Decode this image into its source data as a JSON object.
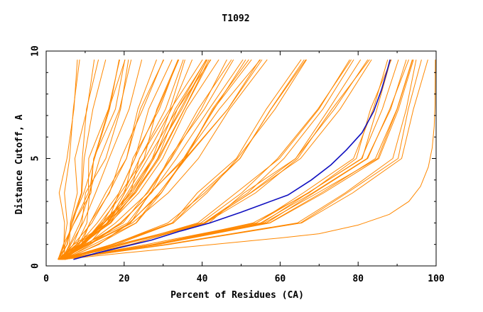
{
  "chart_data": {
    "type": "line",
    "title": "T1092",
    "xlabel": "Percent of Residues (CA)",
    "ylabel": "Distance Cutoff, A",
    "xlim": [
      0,
      100
    ],
    "ylim": [
      0,
      10
    ],
    "x_ticks": [
      "0",
      "20",
      "40",
      "60",
      "80",
      "100"
    ],
    "y_ticks": [
      "0",
      "5",
      "10"
    ],
    "grid": false,
    "legend": "none",
    "colors": {
      "highlight": "#1010c0",
      "others": "#ff8800",
      "axis": "#000000"
    },
    "highlight_series": {
      "points": [
        [
          7,
          0.3
        ],
        [
          13,
          0.6
        ],
        [
          20,
          0.9
        ],
        [
          27,
          1.2
        ],
        [
          34,
          1.6
        ],
        [
          42,
          2.0
        ],
        [
          50,
          2.5
        ],
        [
          56,
          2.9
        ],
        [
          62,
          3.3
        ],
        [
          68,
          4.0
        ],
        [
          73,
          4.7
        ],
        [
          77,
          5.4
        ],
        [
          81,
          6.2
        ],
        [
          84,
          7.2
        ],
        [
          86,
          8.2
        ],
        [
          87.3,
          9.0
        ],
        [
          88.2,
          9.6
        ]
      ]
    },
    "families": [
      {
        "x_at_10": 12,
        "x_at_5": 8,
        "x_at_2": 6,
        "k": 1.2,
        "n": 5,
        "spread": 4
      },
      {
        "x_at_10": 21,
        "x_at_5": 14,
        "x_at_2": 9,
        "k": 1.1,
        "n": 7,
        "spread": 5
      },
      {
        "x_at_10": 33,
        "x_at_5": 23,
        "x_at_2": 14,
        "k": 1.0,
        "n": 10,
        "spread": 5
      },
      {
        "x_at_10": 45,
        "x_at_5": 30,
        "x_at_2": 18,
        "k": 1.0,
        "n": 12,
        "spread": 5
      },
      {
        "x_at_10": 54,
        "x_at_5": 36,
        "x_at_2": 22,
        "k": 1.1,
        "n": 8,
        "spread": 5
      },
      {
        "x_at_10": 63,
        "x_at_5": 46,
        "x_at_2": 30,
        "k": 1.3,
        "n": 4,
        "spread": 4
      },
      {
        "x_at_10": 80,
        "x_at_5": 62,
        "x_at_2": 40,
        "k": 1.5,
        "n": 7,
        "spread": 5
      },
      {
        "x_at_10": 91,
        "x_at_5": 82,
        "x_at_2": 55,
        "k": 2.2,
        "n": 9,
        "spread": 4
      },
      {
        "x_at_10": 96,
        "x_at_5": 90,
        "x_at_2": 65,
        "k": 3.0,
        "n": 3,
        "spread": 2
      }
    ],
    "extreme_series": {
      "points": [
        [
          4,
          0.3
        ],
        [
          20,
          0.6
        ],
        [
          40,
          0.95
        ],
        [
          60,
          1.3
        ],
        [
          70,
          1.5
        ],
        [
          80,
          1.9
        ],
        [
          88,
          2.4
        ],
        [
          93,
          3.0
        ],
        [
          96,
          3.7
        ],
        [
          98,
          4.6
        ],
        [
          99,
          5.5
        ],
        [
          99.5,
          6.5
        ],
        [
          99.7,
          7.5
        ],
        [
          99.8,
          9.6
        ]
      ]
    }
  }
}
